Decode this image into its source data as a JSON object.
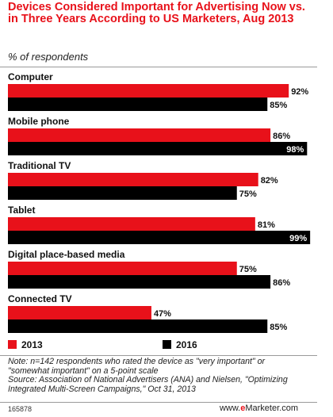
{
  "title": "Devices Considered Important for Advertising Now vs. in Three Years According to US Marketers, Aug 2013",
  "subtitle": "% of respondents",
  "note_line1": "Note: n=142 respondents who rated the device as \"very important\" or",
  "note_line2": "\"somewhat important\" on a 5-point scale",
  "source_line1": "Source: Association of National Advertisers (ANA) and Nielsen, \"Optimizing",
  "source_line2": "Integrated Multi-Screen Campaigns,\" Oct 31, 2013",
  "footer_id": "165878",
  "brand_prefix": "www.",
  "brand_e": "e",
  "brand_suffix": "Marketer.com",
  "colors": {
    "series_2013": "#e8111a",
    "series_2016": "#000000",
    "title": "#e8111a"
  },
  "chart_data": {
    "type": "bar",
    "orientation": "horizontal",
    "title": "Devices Considered Important for Advertising Now vs. in Three Years According to US Marketers, Aug 2013",
    "subtitle": "% of respondents",
    "categories": [
      "Computer",
      "Mobile phone",
      "Traditional TV",
      "Tablet",
      "Digital place-based media",
      "Connected TV"
    ],
    "series": [
      {
        "name": "2013",
        "values": [
          92,
          86,
          82,
          81,
          75,
          47
        ]
      },
      {
        "name": "2016",
        "values": [
          85,
          98,
          75,
          99,
          86,
          85
        ]
      }
    ],
    "value_suffix": "%",
    "xlim": [
      0,
      100
    ],
    "grid": false,
    "legend": "bottom"
  }
}
